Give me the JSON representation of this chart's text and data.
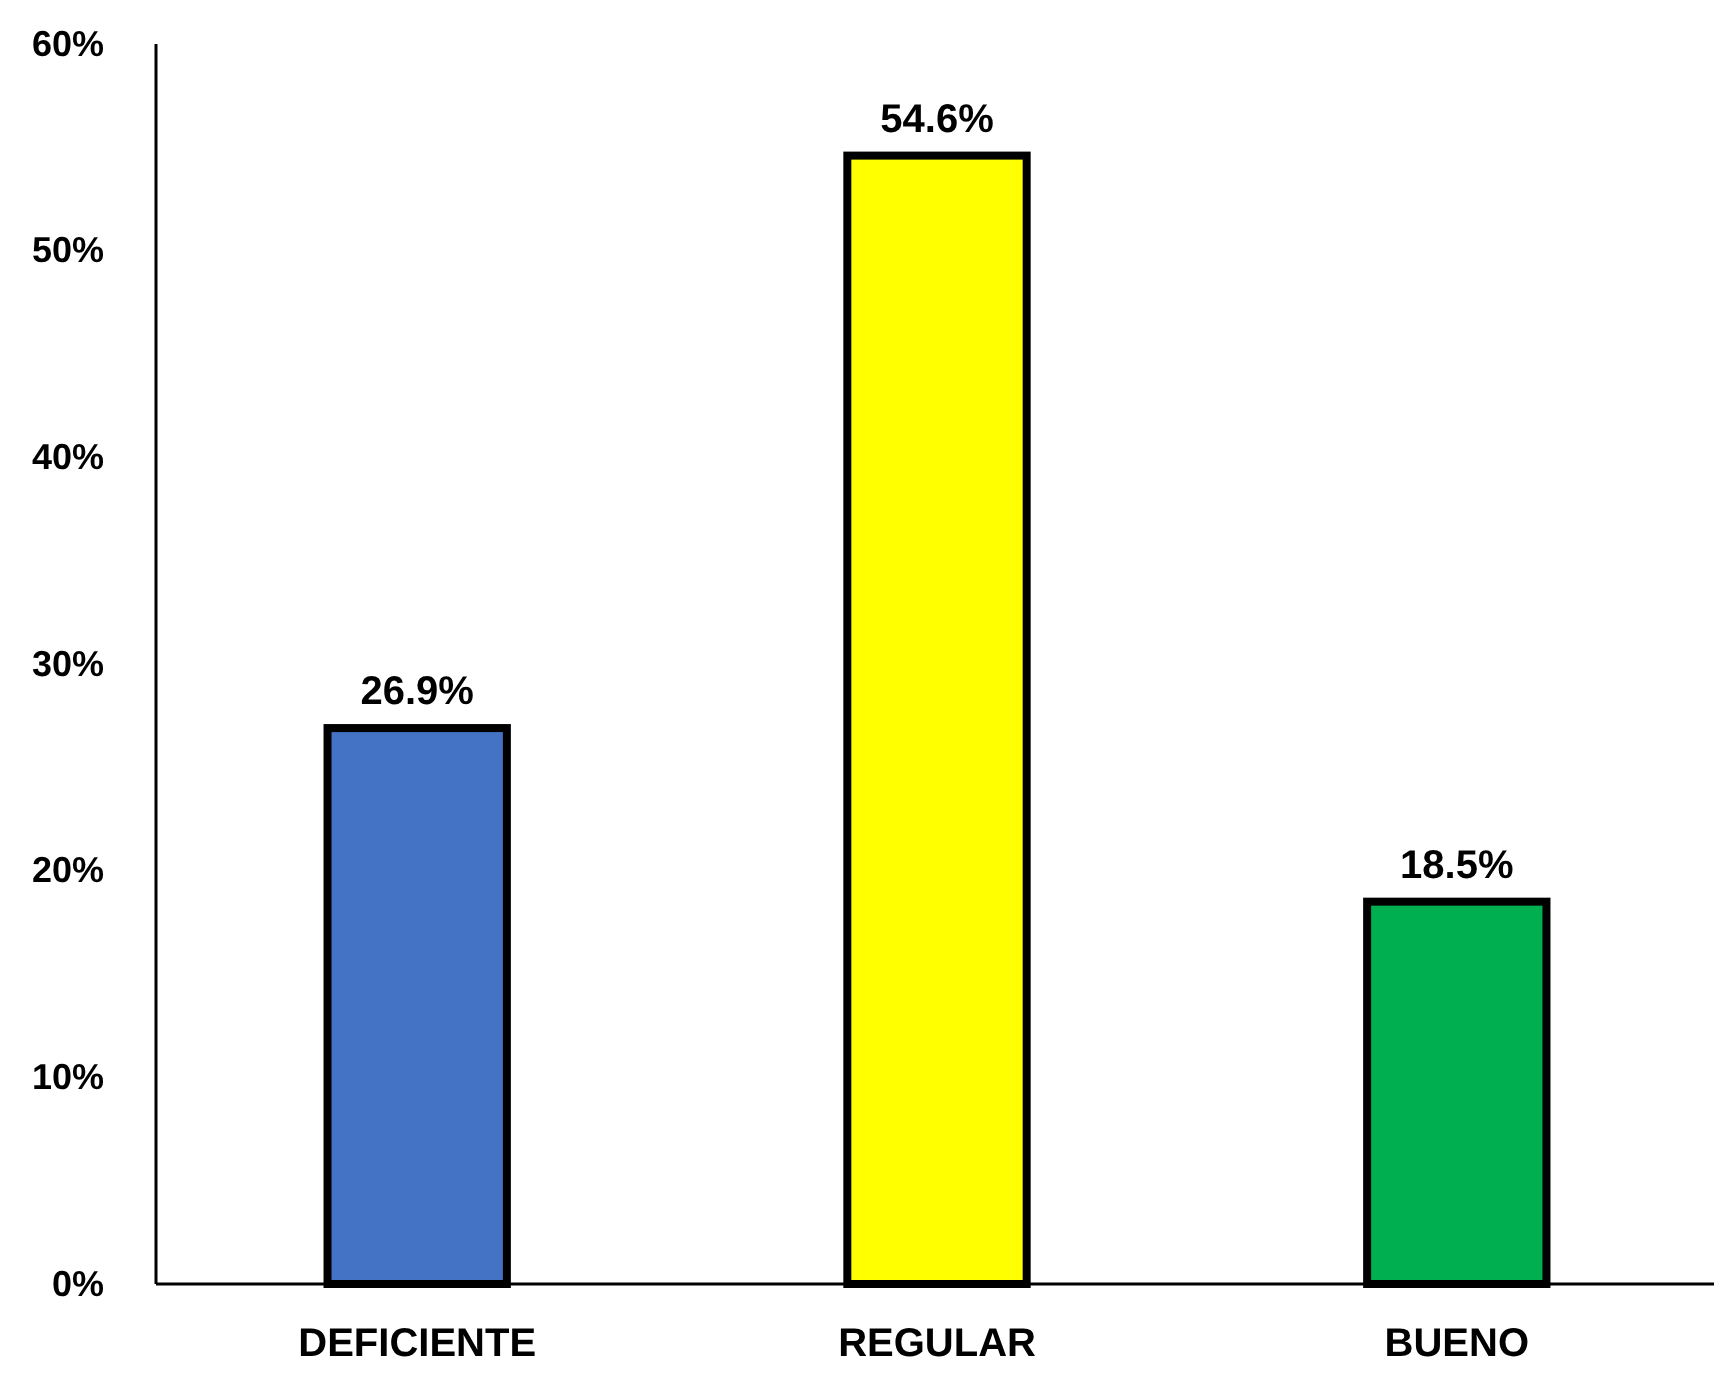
{
  "chart_data": {
    "type": "bar",
    "categories": [
      "DEFICIENTE",
      "REGULAR",
      "BUENO"
    ],
    "values": [
      26.9,
      54.6,
      18.5
    ],
    "colors": [
      "#4472c4",
      "#ffff00",
      "#00b050"
    ],
    "value_labels": [
      "26.9%",
      "54.6%",
      "18.5%"
    ],
    "ylim": [
      0,
      60
    ],
    "yticks": [
      {
        "value": 0,
        "label": "0%"
      },
      {
        "value": 10,
        "label": "10%"
      },
      {
        "value": 20,
        "label": "20%"
      },
      {
        "value": 30,
        "label": "30%"
      },
      {
        "value": 40,
        "label": "40%"
      },
      {
        "value": 50,
        "label": "50%"
      },
      {
        "value": 60,
        "label": "60%"
      }
    ],
    "grid": false
  }
}
